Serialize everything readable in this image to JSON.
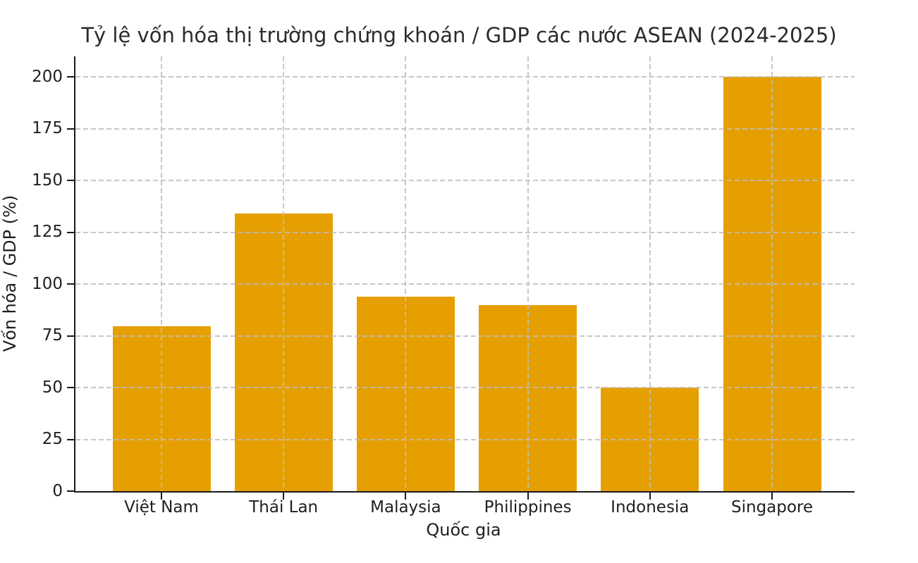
{
  "chart_data": {
    "type": "bar",
    "title": "Tỷ lệ vốn hóa thị trường chứng khoán / GDP các nước ASEAN (2024-2025)",
    "xlabel": "Quốc gia",
    "ylabel": "Vốn hóa / GDP (%)",
    "categories": [
      "Việt Nam",
      "Thái Lan",
      "Malaysia",
      "Philippines",
      "Indonesia",
      "Singapore"
    ],
    "values": [
      79.5,
      134,
      94,
      90,
      50,
      200
    ],
    "yticks": [
      0,
      25,
      50,
      75,
      100,
      125,
      150,
      175,
      200
    ],
    "ylim": [
      0,
      210
    ],
    "bar_color": "#E69F00",
    "grid": "dashed",
    "grid_color": "#bebebe",
    "axis_color": "#1a1a1a",
    "text_color": "#1f1f1f",
    "background_color": "#ffffff",
    "legend": "none"
  }
}
